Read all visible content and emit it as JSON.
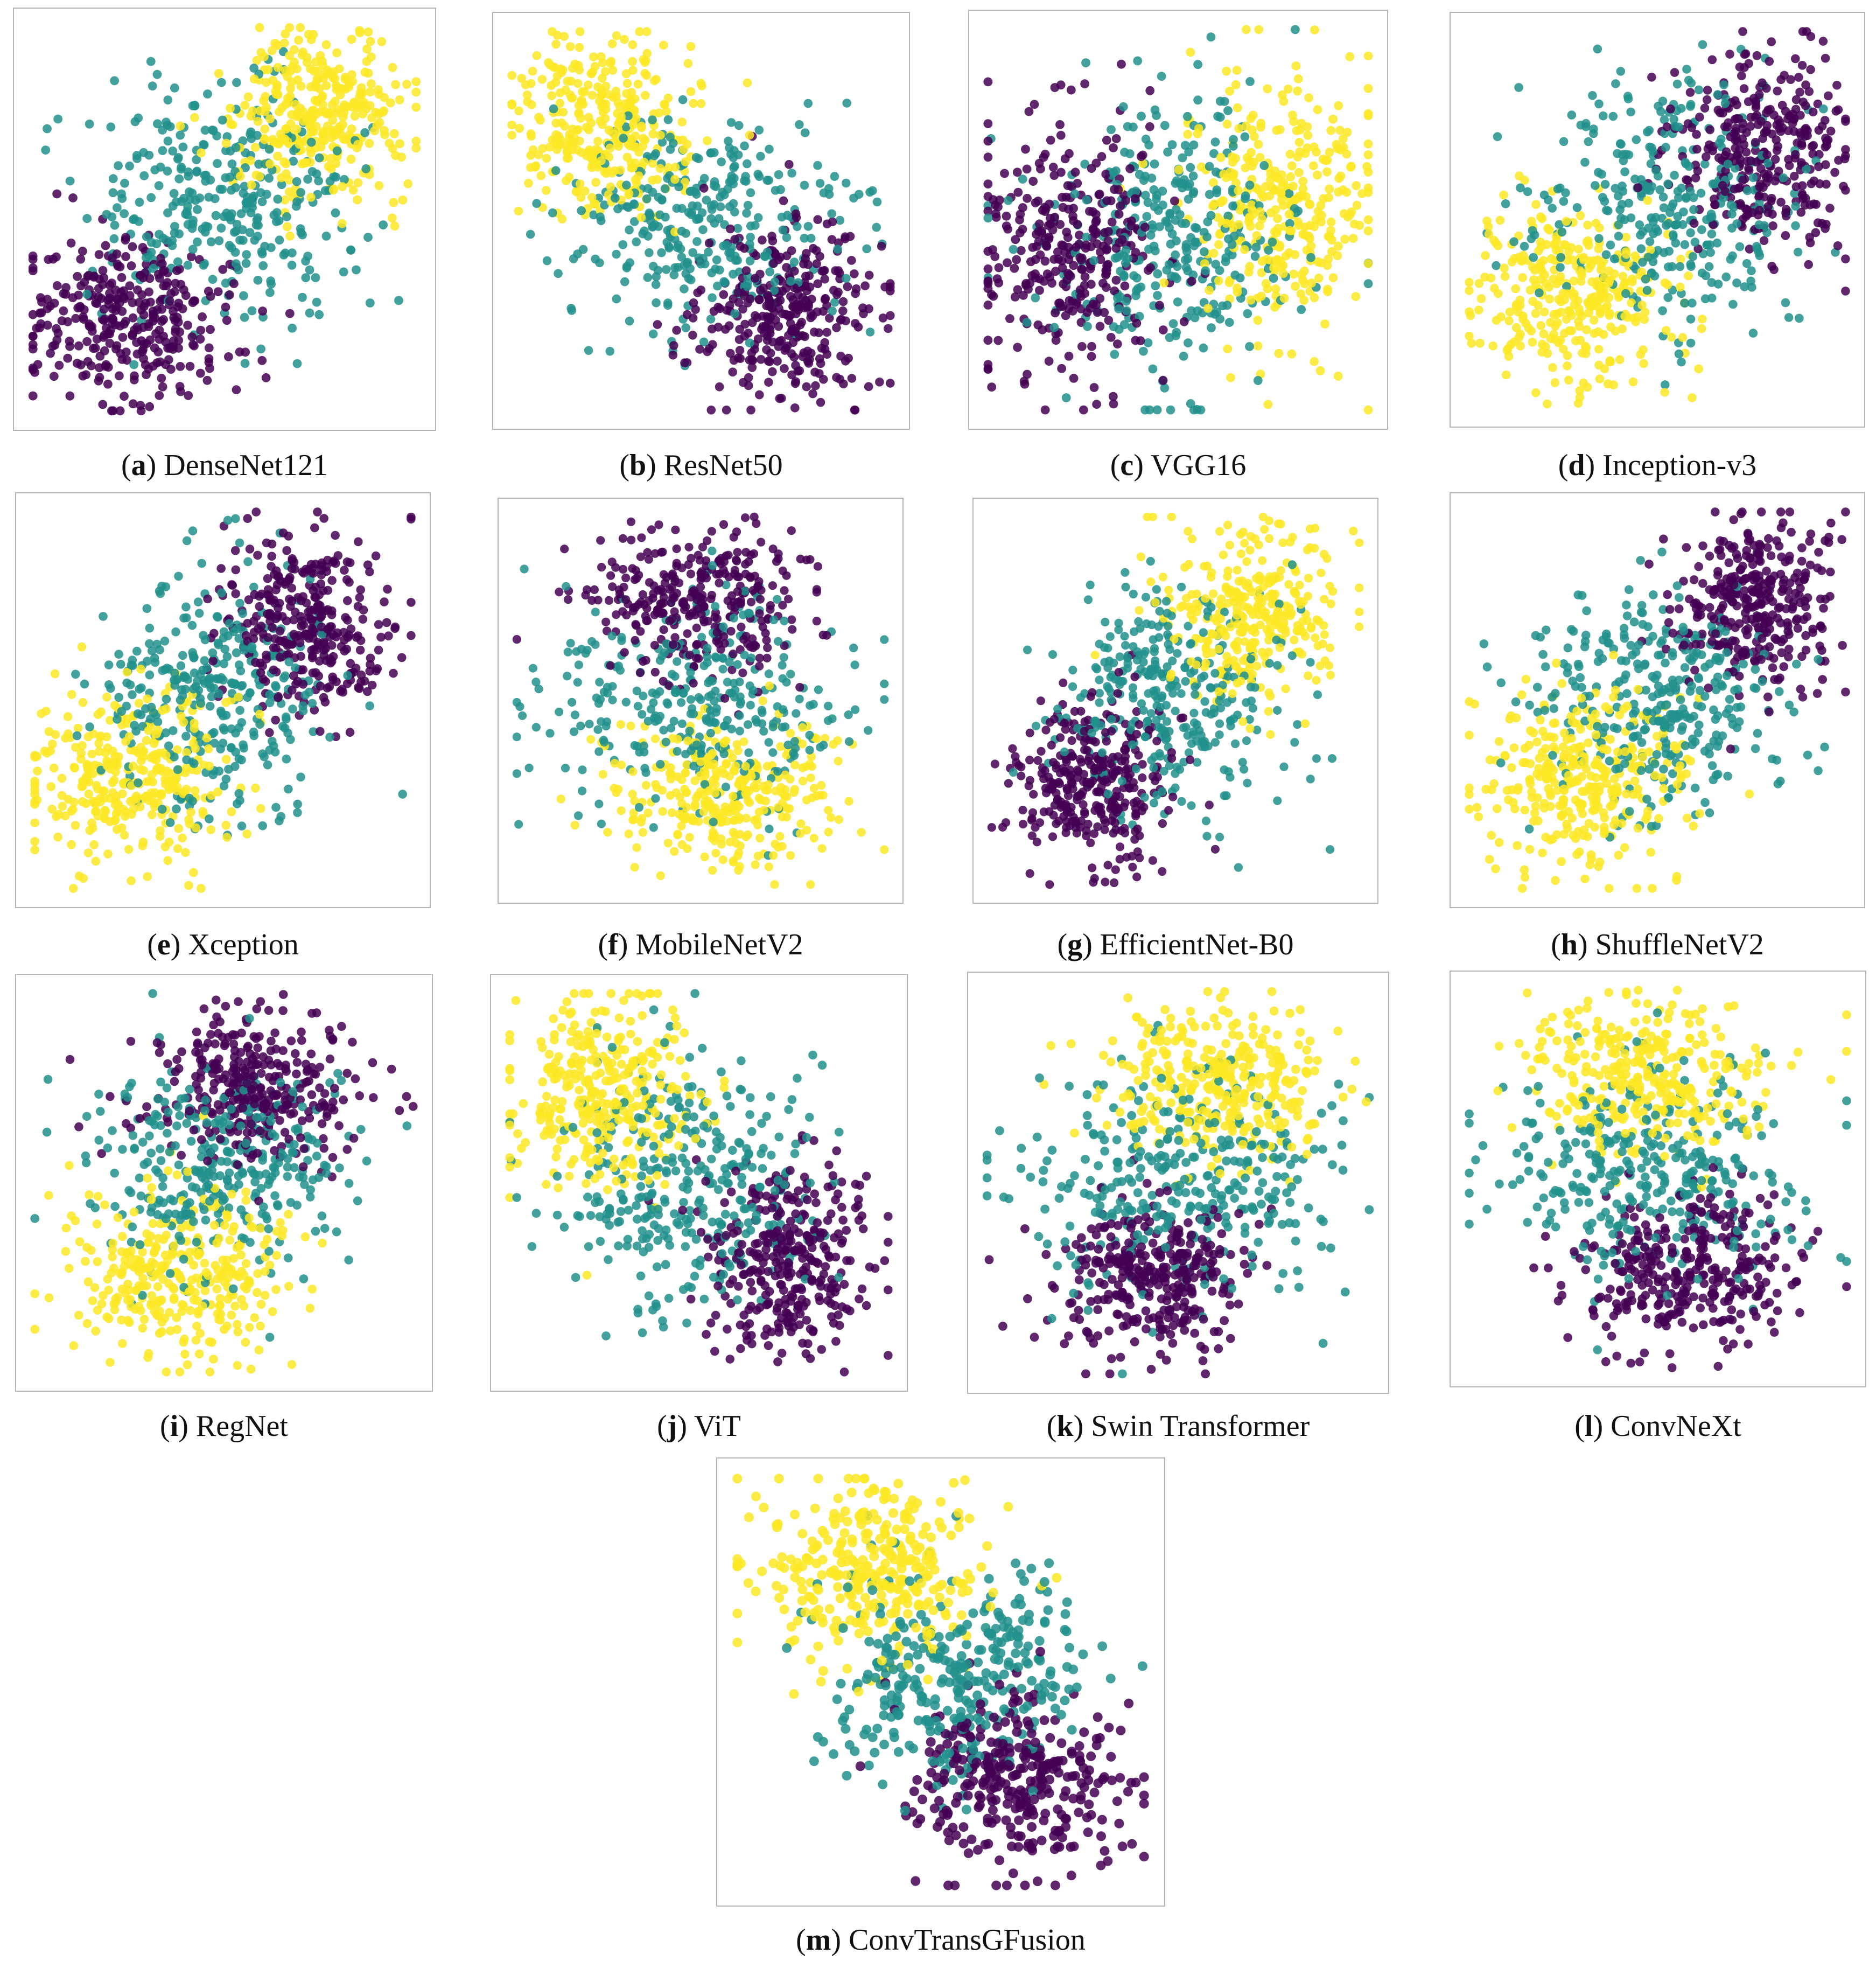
{
  "figure": {
    "class_colors": {
      "class_a": "#440154",
      "class_b": "#21918c",
      "class_c": "#fde725"
    },
    "marker": "circle",
    "marker_alpha": 0.85
  },
  "chart_data": [
    {
      "type": "scatter",
      "letter": "a",
      "model": "DenseNet121",
      "axes": false,
      "grid": false,
      "xlim": [
        0,
        1
      ],
      "ylim": [
        0,
        1
      ],
      "clusters": [
        {
          "class": "class_a",
          "center": [
            0.25,
            0.24
          ],
          "spread": [
            0.13,
            0.11
          ],
          "count": 330
        },
        {
          "class": "class_b",
          "center": [
            0.5,
            0.55
          ],
          "spread": [
            0.17,
            0.15
          ],
          "count": 330
        },
        {
          "class": "class_c",
          "center": [
            0.74,
            0.76
          ],
          "spread": [
            0.12,
            0.11
          ],
          "count": 330
        }
      ]
    },
    {
      "type": "scatter",
      "letter": "b",
      "model": "ResNet50",
      "axes": false,
      "grid": false,
      "xlim": [
        0,
        1
      ],
      "ylim": [
        0,
        1
      ],
      "clusters": [
        {
          "class": "class_c",
          "center": [
            0.24,
            0.75
          ],
          "spread": [
            0.13,
            0.12
          ],
          "count": 330
        },
        {
          "class": "class_b",
          "center": [
            0.5,
            0.5
          ],
          "spread": [
            0.18,
            0.15
          ],
          "count": 330
        },
        {
          "class": "class_a",
          "center": [
            0.73,
            0.26
          ],
          "spread": [
            0.12,
            0.12
          ],
          "count": 330
        }
      ]
    },
    {
      "type": "scatter",
      "letter": "c",
      "model": "VGG16",
      "axes": false,
      "grid": false,
      "xlim": [
        0,
        1
      ],
      "ylim": [
        0,
        1
      ],
      "clusters": [
        {
          "class": "class_a",
          "center": [
            0.22,
            0.42
          ],
          "spread": [
            0.13,
            0.17
          ],
          "count": 330
        },
        {
          "class": "class_b",
          "center": [
            0.5,
            0.47
          ],
          "spread": [
            0.18,
            0.19
          ],
          "count": 330
        },
        {
          "class": "class_c",
          "center": [
            0.76,
            0.56
          ],
          "spread": [
            0.12,
            0.17
          ],
          "count": 330
        }
      ]
    },
    {
      "type": "scatter",
      "letter": "d",
      "model": "Inception-v3",
      "axes": false,
      "grid": false,
      "xlim": [
        0,
        1
      ],
      "ylim": [
        0,
        1
      ],
      "clusters": [
        {
          "class": "class_c",
          "center": [
            0.27,
            0.3
          ],
          "spread": [
            0.14,
            0.12
          ],
          "count": 330
        },
        {
          "class": "class_b",
          "center": [
            0.53,
            0.55
          ],
          "spread": [
            0.17,
            0.15
          ],
          "count": 330
        },
        {
          "class": "class_a",
          "center": [
            0.77,
            0.68
          ],
          "spread": [
            0.11,
            0.13
          ],
          "count": 330
        }
      ]
    },
    {
      "type": "scatter",
      "letter": "e",
      "model": "Xception",
      "axes": false,
      "grid": false,
      "xlim": [
        0,
        1
      ],
      "ylim": [
        0,
        1
      ],
      "clusters": [
        {
          "class": "class_c",
          "center": [
            0.25,
            0.3
          ],
          "spread": [
            0.14,
            0.12
          ],
          "count": 330
        },
        {
          "class": "class_b",
          "center": [
            0.48,
            0.5
          ],
          "spread": [
            0.15,
            0.16
          ],
          "count": 330
        },
        {
          "class": "class_a",
          "center": [
            0.72,
            0.7
          ],
          "spread": [
            0.11,
            0.12
          ],
          "count": 330
        }
      ]
    },
    {
      "type": "scatter",
      "letter": "f",
      "model": "MobileNetV2",
      "axes": false,
      "grid": false,
      "xlim": [
        0,
        1
      ],
      "ylim": [
        0,
        1
      ],
      "clusters": [
        {
          "class": "class_a",
          "center": [
            0.5,
            0.77
          ],
          "spread": [
            0.15,
            0.1
          ],
          "count": 330
        },
        {
          "class": "class_b",
          "center": [
            0.48,
            0.5
          ],
          "spread": [
            0.21,
            0.14
          ],
          "count": 330
        },
        {
          "class": "class_c",
          "center": [
            0.57,
            0.25
          ],
          "spread": [
            0.16,
            0.1
          ],
          "count": 330
        }
      ]
    },
    {
      "type": "scatter",
      "letter": "g",
      "model": "EfficientNet-B0",
      "axes": false,
      "grid": false,
      "xlim": [
        0,
        1
      ],
      "ylim": [
        0,
        1
      ],
      "clusters": [
        {
          "class": "class_a",
          "center": [
            0.28,
            0.27
          ],
          "spread": [
            0.12,
            0.11
          ],
          "count": 330
        },
        {
          "class": "class_b",
          "center": [
            0.5,
            0.5
          ],
          "spread": [
            0.16,
            0.15
          ],
          "count": 330
        },
        {
          "class": "class_c",
          "center": [
            0.7,
            0.73
          ],
          "spread": [
            0.12,
            0.12
          ],
          "count": 330
        }
      ]
    },
    {
      "type": "scatter",
      "letter": "h",
      "model": "ShuffleNetV2",
      "axes": false,
      "grid": false,
      "xlim": [
        0,
        1
      ],
      "ylim": [
        0,
        1
      ],
      "clusters": [
        {
          "class": "class_c",
          "center": [
            0.3,
            0.28
          ],
          "spread": [
            0.14,
            0.12
          ],
          "count": 330
        },
        {
          "class": "class_b",
          "center": [
            0.52,
            0.5
          ],
          "spread": [
            0.16,
            0.15
          ],
          "count": 330
        },
        {
          "class": "class_a",
          "center": [
            0.76,
            0.75
          ],
          "spread": [
            0.11,
            0.11
          ],
          "count": 330
        }
      ]
    },
    {
      "type": "scatter",
      "letter": "i",
      "model": "RegNet",
      "axes": false,
      "grid": false,
      "xlim": [
        0,
        1
      ],
      "ylim": [
        0,
        1
      ],
      "clusters": [
        {
          "class": "class_a",
          "center": [
            0.57,
            0.76
          ],
          "spread": [
            0.13,
            0.1
          ],
          "count": 330
        },
        {
          "class": "class_b",
          "center": [
            0.48,
            0.52
          ],
          "spread": [
            0.18,
            0.14
          ],
          "count": 330
        },
        {
          "class": "class_c",
          "center": [
            0.38,
            0.27
          ],
          "spread": [
            0.15,
            0.11
          ],
          "count": 330
        }
      ]
    },
    {
      "type": "scatter",
      "letter": "j",
      "model": "ViT",
      "axes": false,
      "grid": false,
      "xlim": [
        0,
        1
      ],
      "ylim": [
        0,
        1
      ],
      "clusters": [
        {
          "class": "class_c",
          "center": [
            0.25,
            0.72
          ],
          "spread": [
            0.12,
            0.13
          ],
          "count": 330
        },
        {
          "class": "class_b",
          "center": [
            0.48,
            0.5
          ],
          "spread": [
            0.17,
            0.16
          ],
          "count": 330
        },
        {
          "class": "class_a",
          "center": [
            0.72,
            0.3
          ],
          "spread": [
            0.11,
            0.12
          ],
          "count": 330
        }
      ]
    },
    {
      "type": "scatter",
      "letter": "k",
      "model": "Swin Transformer",
      "axes": false,
      "grid": false,
      "xlim": [
        0,
        1
      ],
      "ylim": [
        0,
        1
      ],
      "clusters": [
        {
          "class": "class_c",
          "center": [
            0.62,
            0.77
          ],
          "spread": [
            0.14,
            0.1
          ],
          "count": 330
        },
        {
          "class": "class_b",
          "center": [
            0.5,
            0.52
          ],
          "spread": [
            0.2,
            0.14
          ],
          "count": 330
        },
        {
          "class": "class_a",
          "center": [
            0.43,
            0.25
          ],
          "spread": [
            0.13,
            0.1
          ],
          "count": 330
        }
      ]
    },
    {
      "type": "scatter",
      "letter": "l",
      "model": "ConvNeXt",
      "axes": false,
      "grid": false,
      "xlim": [
        0,
        1
      ],
      "ylim": [
        0,
        1
      ],
      "clusters": [
        {
          "class": "class_c",
          "center": [
            0.47,
            0.77
          ],
          "spread": [
            0.16,
            0.1
          ],
          "count": 330
        },
        {
          "class": "class_b",
          "center": [
            0.48,
            0.52
          ],
          "spread": [
            0.22,
            0.14
          ],
          "count": 330
        },
        {
          "class": "class_a",
          "center": [
            0.58,
            0.26
          ],
          "spread": [
            0.15,
            0.1
          ],
          "count": 330
        }
      ]
    },
    {
      "type": "scatter",
      "letter": "m",
      "model": "ConvTransGFusion",
      "axes": false,
      "grid": false,
      "xlim": [
        0,
        1
      ],
      "ylim": [
        0,
        1
      ],
      "clusters": [
        {
          "class": "class_c",
          "center": [
            0.33,
            0.78
          ],
          "spread": [
            0.14,
            0.11
          ],
          "count": 330
        },
        {
          "class": "class_b",
          "center": [
            0.53,
            0.52
          ],
          "spread": [
            0.17,
            0.14
          ],
          "count": 330
        },
        {
          "class": "class_a",
          "center": [
            0.68,
            0.25
          ],
          "spread": [
            0.13,
            0.11
          ],
          "count": 330
        }
      ]
    }
  ]
}
